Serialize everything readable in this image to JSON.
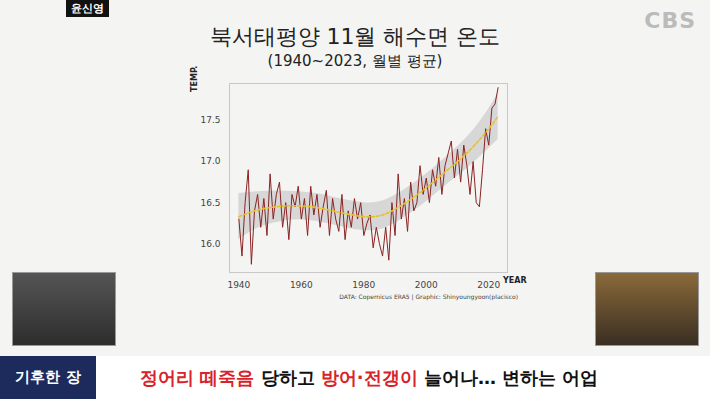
{
  "overlay": {
    "speaker": "윤신영",
    "logo": "CBS",
    "segment": "기후한 장",
    "headline": [
      {
        "text": "정어리 떼죽음",
        "color": "#d8232a"
      },
      {
        "text": " 당하고 ",
        "color": "#111111"
      },
      {
        "text": "방어·전갱이",
        "color": "#d8232a"
      },
      {
        "text": " 늘어나… 변하는 어업",
        "color": "#111111"
      }
    ]
  },
  "chart_data": {
    "type": "line",
    "title": "북서태평양 11월 해수면 온도",
    "subtitle": "(1940~2023, 월별 평균)",
    "y_label": "TEMP.",
    "x_label": "YEAR",
    "source": "DATA: Copernicus ERA5 | Graphic: Shinyoungyoon(placisco)",
    "x": [
      1940,
      1941,
      1942,
      1943,
      1944,
      1945,
      1946,
      1947,
      1948,
      1949,
      1950,
      1951,
      1952,
      1953,
      1954,
      1955,
      1956,
      1957,
      1958,
      1959,
      1960,
      1961,
      1962,
      1963,
      1964,
      1965,
      1966,
      1967,
      1968,
      1969,
      1970,
      1971,
      1972,
      1973,
      1974,
      1975,
      1976,
      1977,
      1978,
      1979,
      1980,
      1981,
      1982,
      1983,
      1984,
      1985,
      1986,
      1987,
      1988,
      1989,
      1990,
      1991,
      1992,
      1993,
      1994,
      1995,
      1996,
      1997,
      1998,
      1999,
      2000,
      2001,
      2002,
      2003,
      2004,
      2005,
      2006,
      2007,
      2008,
      2009,
      2010,
      2011,
      2012,
      2013,
      2014,
      2015,
      2016,
      2017,
      2018,
      2019,
      2020,
      2021,
      2022,
      2023
    ],
    "series": [
      {
        "color": "#8b2323",
        "line_style": "solid",
        "values": [
          16.3,
          15.85,
          16.5,
          16.9,
          15.75,
          16.4,
          16.6,
          16.2,
          16.55,
          16.1,
          16.85,
          16.3,
          16.6,
          16.75,
          16.2,
          16.5,
          16.05,
          16.6,
          16.45,
          16.7,
          16.3,
          16.55,
          16.1,
          16.7,
          16.35,
          16.6,
          16.2,
          16.45,
          16.65,
          16.1,
          16.55,
          16.3,
          16.15,
          16.6,
          16.05,
          16.4,
          16.2,
          16.55,
          16.3,
          16.5,
          16.1,
          16.25,
          16.35,
          15.95,
          16.2,
          16.0,
          15.85,
          16.2,
          15.8,
          16.5,
          16.1,
          16.85,
          16.3,
          16.55,
          16.15,
          16.75,
          16.4,
          16.5,
          16.95,
          16.6,
          16.8,
          16.5,
          16.9,
          16.7,
          17.05,
          16.6,
          16.95,
          17.1,
          17.25,
          16.8,
          17.15,
          16.75,
          17.2,
          16.95,
          16.6,
          17.0,
          16.5,
          16.45,
          16.9,
          17.4,
          17.2,
          17.65,
          17.7,
          17.9
        ]
      },
      {
        "color": "#e6c229",
        "line_style": "dashed",
        "x": [
          1940,
          1945,
          1950,
          1955,
          1960,
          1965,
          1970,
          1975,
          1980,
          1985,
          1990,
          1995,
          2000,
          2005,
          2010,
          2015,
          2020,
          2023
        ],
        "values": [
          16.33,
          16.4,
          16.44,
          16.46,
          16.46,
          16.44,
          16.4,
          16.36,
          16.33,
          16.34,
          16.42,
          16.54,
          16.68,
          16.84,
          17.0,
          17.18,
          17.4,
          17.55
        ],
        "band_lower": [
          16.05,
          16.17,
          16.24,
          16.28,
          16.29,
          16.27,
          16.23,
          16.19,
          16.16,
          16.17,
          16.25,
          16.37,
          16.51,
          16.67,
          16.82,
          16.98,
          17.16,
          17.27
        ],
        "band_upper": [
          16.61,
          16.63,
          16.64,
          16.64,
          16.63,
          16.61,
          16.57,
          16.53,
          16.5,
          16.51,
          16.59,
          16.71,
          16.85,
          17.01,
          17.18,
          17.38,
          17.64,
          17.83
        ]
      }
    ],
    "xlim": [
      1937,
      2026
    ],
    "xticks": [
      1940,
      1960,
      1980,
      2000,
      2020
    ],
    "ylim": [
      15.65,
      17.95
    ],
    "yticks": [
      {
        "value": 16,
        "label": "16.0"
      },
      {
        "value": 16.5,
        "label": "16.5"
      },
      {
        "value": 17,
        "label": "17.0"
      },
      {
        "value": 17.5,
        "label": "17.5"
      }
    ],
    "grid": false
  }
}
